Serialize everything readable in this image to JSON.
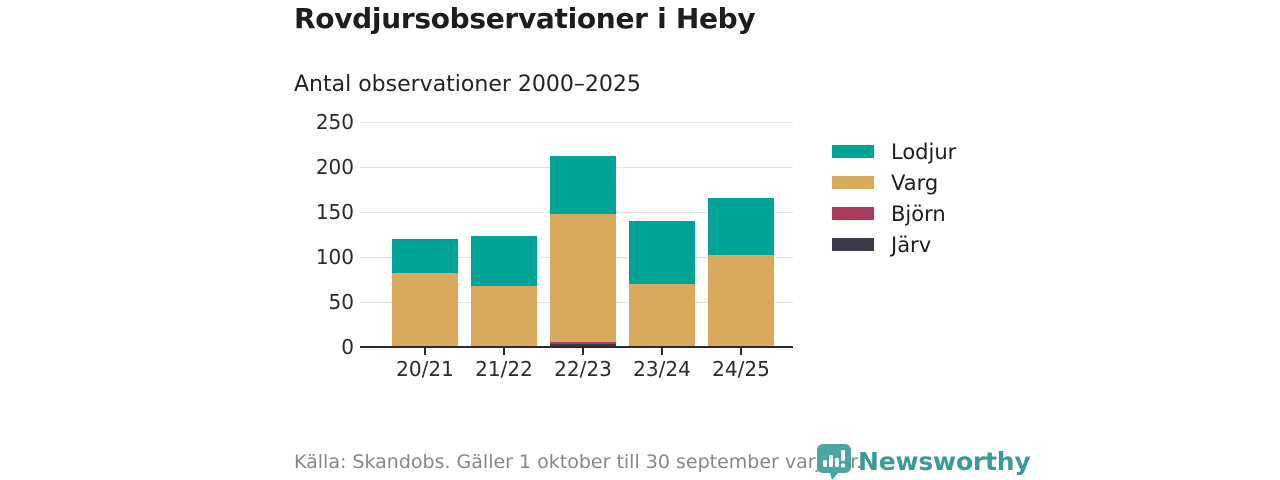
{
  "chart_data": {
    "type": "bar",
    "stacked": true,
    "title": "Rovdjursobservationer i Heby",
    "subtitle": "Antal observationer 2000–2025",
    "categories": [
      "20/21",
      "21/22",
      "22/23",
      "23/24",
      "24/25"
    ],
    "series": [
      {
        "name": "Lodjur",
        "color": "#00a396",
        "values": [
          38,
          55,
          64,
          70,
          64
        ]
      },
      {
        "name": "Varg",
        "color": "#d9a95d",
        "values": [
          81,
          67,
          142,
          70,
          102
        ]
      },
      {
        "name": "Björn",
        "color": "#a93b5d",
        "values": [
          1,
          1,
          3,
          0,
          0
        ]
      },
      {
        "name": "Järv",
        "color": "#3e3a4c",
        "values": [
          0,
          0,
          3,
          0,
          0
        ]
      }
    ],
    "totals": [
      120,
      123,
      212,
      140,
      166
    ],
    "xlabel": "",
    "ylabel": "",
    "ylim": [
      0,
      250
    ],
    "yticks": [
      0,
      50,
      100,
      150,
      200,
      250
    ],
    "grid": true,
    "legend_position": "right"
  },
  "footer": {
    "source": "Källa: Skandobs. Gäller 1 oktober till 30 september varje år.",
    "brand": "Newsworthy"
  },
  "colors": {
    "brand_text": "#3a9a96",
    "brand_logo": "#4da5a1",
    "gridline": "#e3e3e3",
    "axis": "#2b2b2b"
  }
}
